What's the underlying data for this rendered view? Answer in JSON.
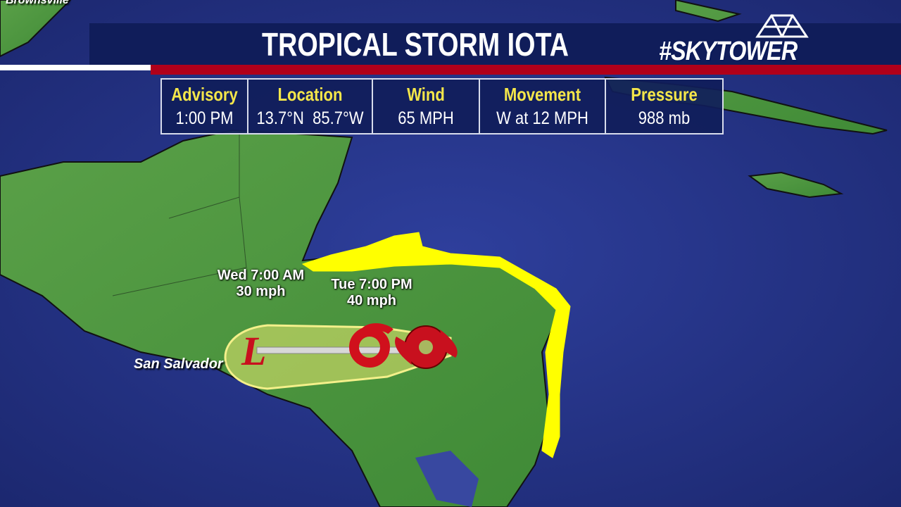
{
  "header": {
    "title": "TROPICAL STORM IOTA",
    "logo": "#SKYTOWER"
  },
  "advisory": [
    {
      "label": "Advisory",
      "value": "1:00 PM"
    },
    {
      "label": "Location",
      "value": "13.7°N  85.7°W"
    },
    {
      "label": "Wind",
      "value": "65 MPH"
    },
    {
      "label": "Movement",
      "value": "W at 12 MPH"
    },
    {
      "label": "Pressure",
      "value": "988 mb"
    }
  ],
  "map": {
    "cities": [
      "Brownsville",
      "San Salvador"
    ],
    "forecast_points": [
      {
        "time": "Tue 7:00 PM",
        "wind": "40 mph",
        "symbol": "tropical-storm-icon"
      },
      {
        "time": "Wed 7:00 AM",
        "wind": "30 mph",
        "symbol": "low-icon",
        "letter": "L"
      }
    ],
    "current_symbol": "hurricane-icon",
    "warning_color": "#ffff00",
    "cone_color": "#f0ee80"
  }
}
